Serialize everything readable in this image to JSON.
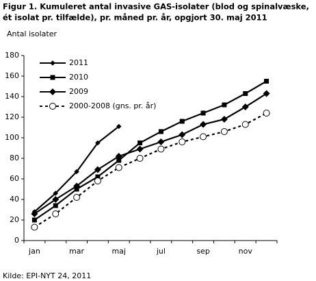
{
  "chart_data": {
    "type": "line",
    "title": [
      "Figur 1. Kumuleret antal invasive GAS-isolater (blod og spinalvæske,",
      "ét isolat pr. tilfælde), pr. måned pr. år, opgjort 30. maj 2011"
    ],
    "y_label": "Antal isolater",
    "source": "Kilde: EPI-NYT 24, 2011",
    "categories": [
      "jan",
      null,
      "mar",
      null,
      "maj",
      null,
      "jul",
      null,
      "sep",
      null,
      "nov",
      null
    ],
    "ylim": [
      0,
      180
    ],
    "yticks": [
      0,
      20,
      40,
      60,
      80,
      100,
      120,
      140,
      160,
      180
    ],
    "legend": "top-left",
    "series": [
      {
        "name": "2011",
        "color": "#000000",
        "marker": "small-diamond",
        "dash": false,
        "values": [
          28,
          46,
          67,
          95,
          111,
          null,
          null,
          null,
          null,
          null,
          null,
          null
        ]
      },
      {
        "name": "2010",
        "color": "#000000",
        "marker": "square",
        "dash": false,
        "values": [
          20,
          34,
          50,
          62,
          78,
          95,
          106,
          116,
          124,
          132,
          143,
          155
        ]
      },
      {
        "name": "2009",
        "color": "#000000",
        "marker": "diamond",
        "dash": false,
        "values": [
          26,
          40,
          53,
          69,
          82,
          89,
          96,
          103,
          113,
          118,
          130,
          143
        ]
      },
      {
        "name": "2000-2008 (gns. pr. år)",
        "color": "#000000",
        "marker": "circle",
        "dash": true,
        "values": [
          13,
          26,
          42,
          58,
          71,
          80,
          89,
          96,
          101,
          106,
          113,
          124
        ]
      }
    ]
  }
}
